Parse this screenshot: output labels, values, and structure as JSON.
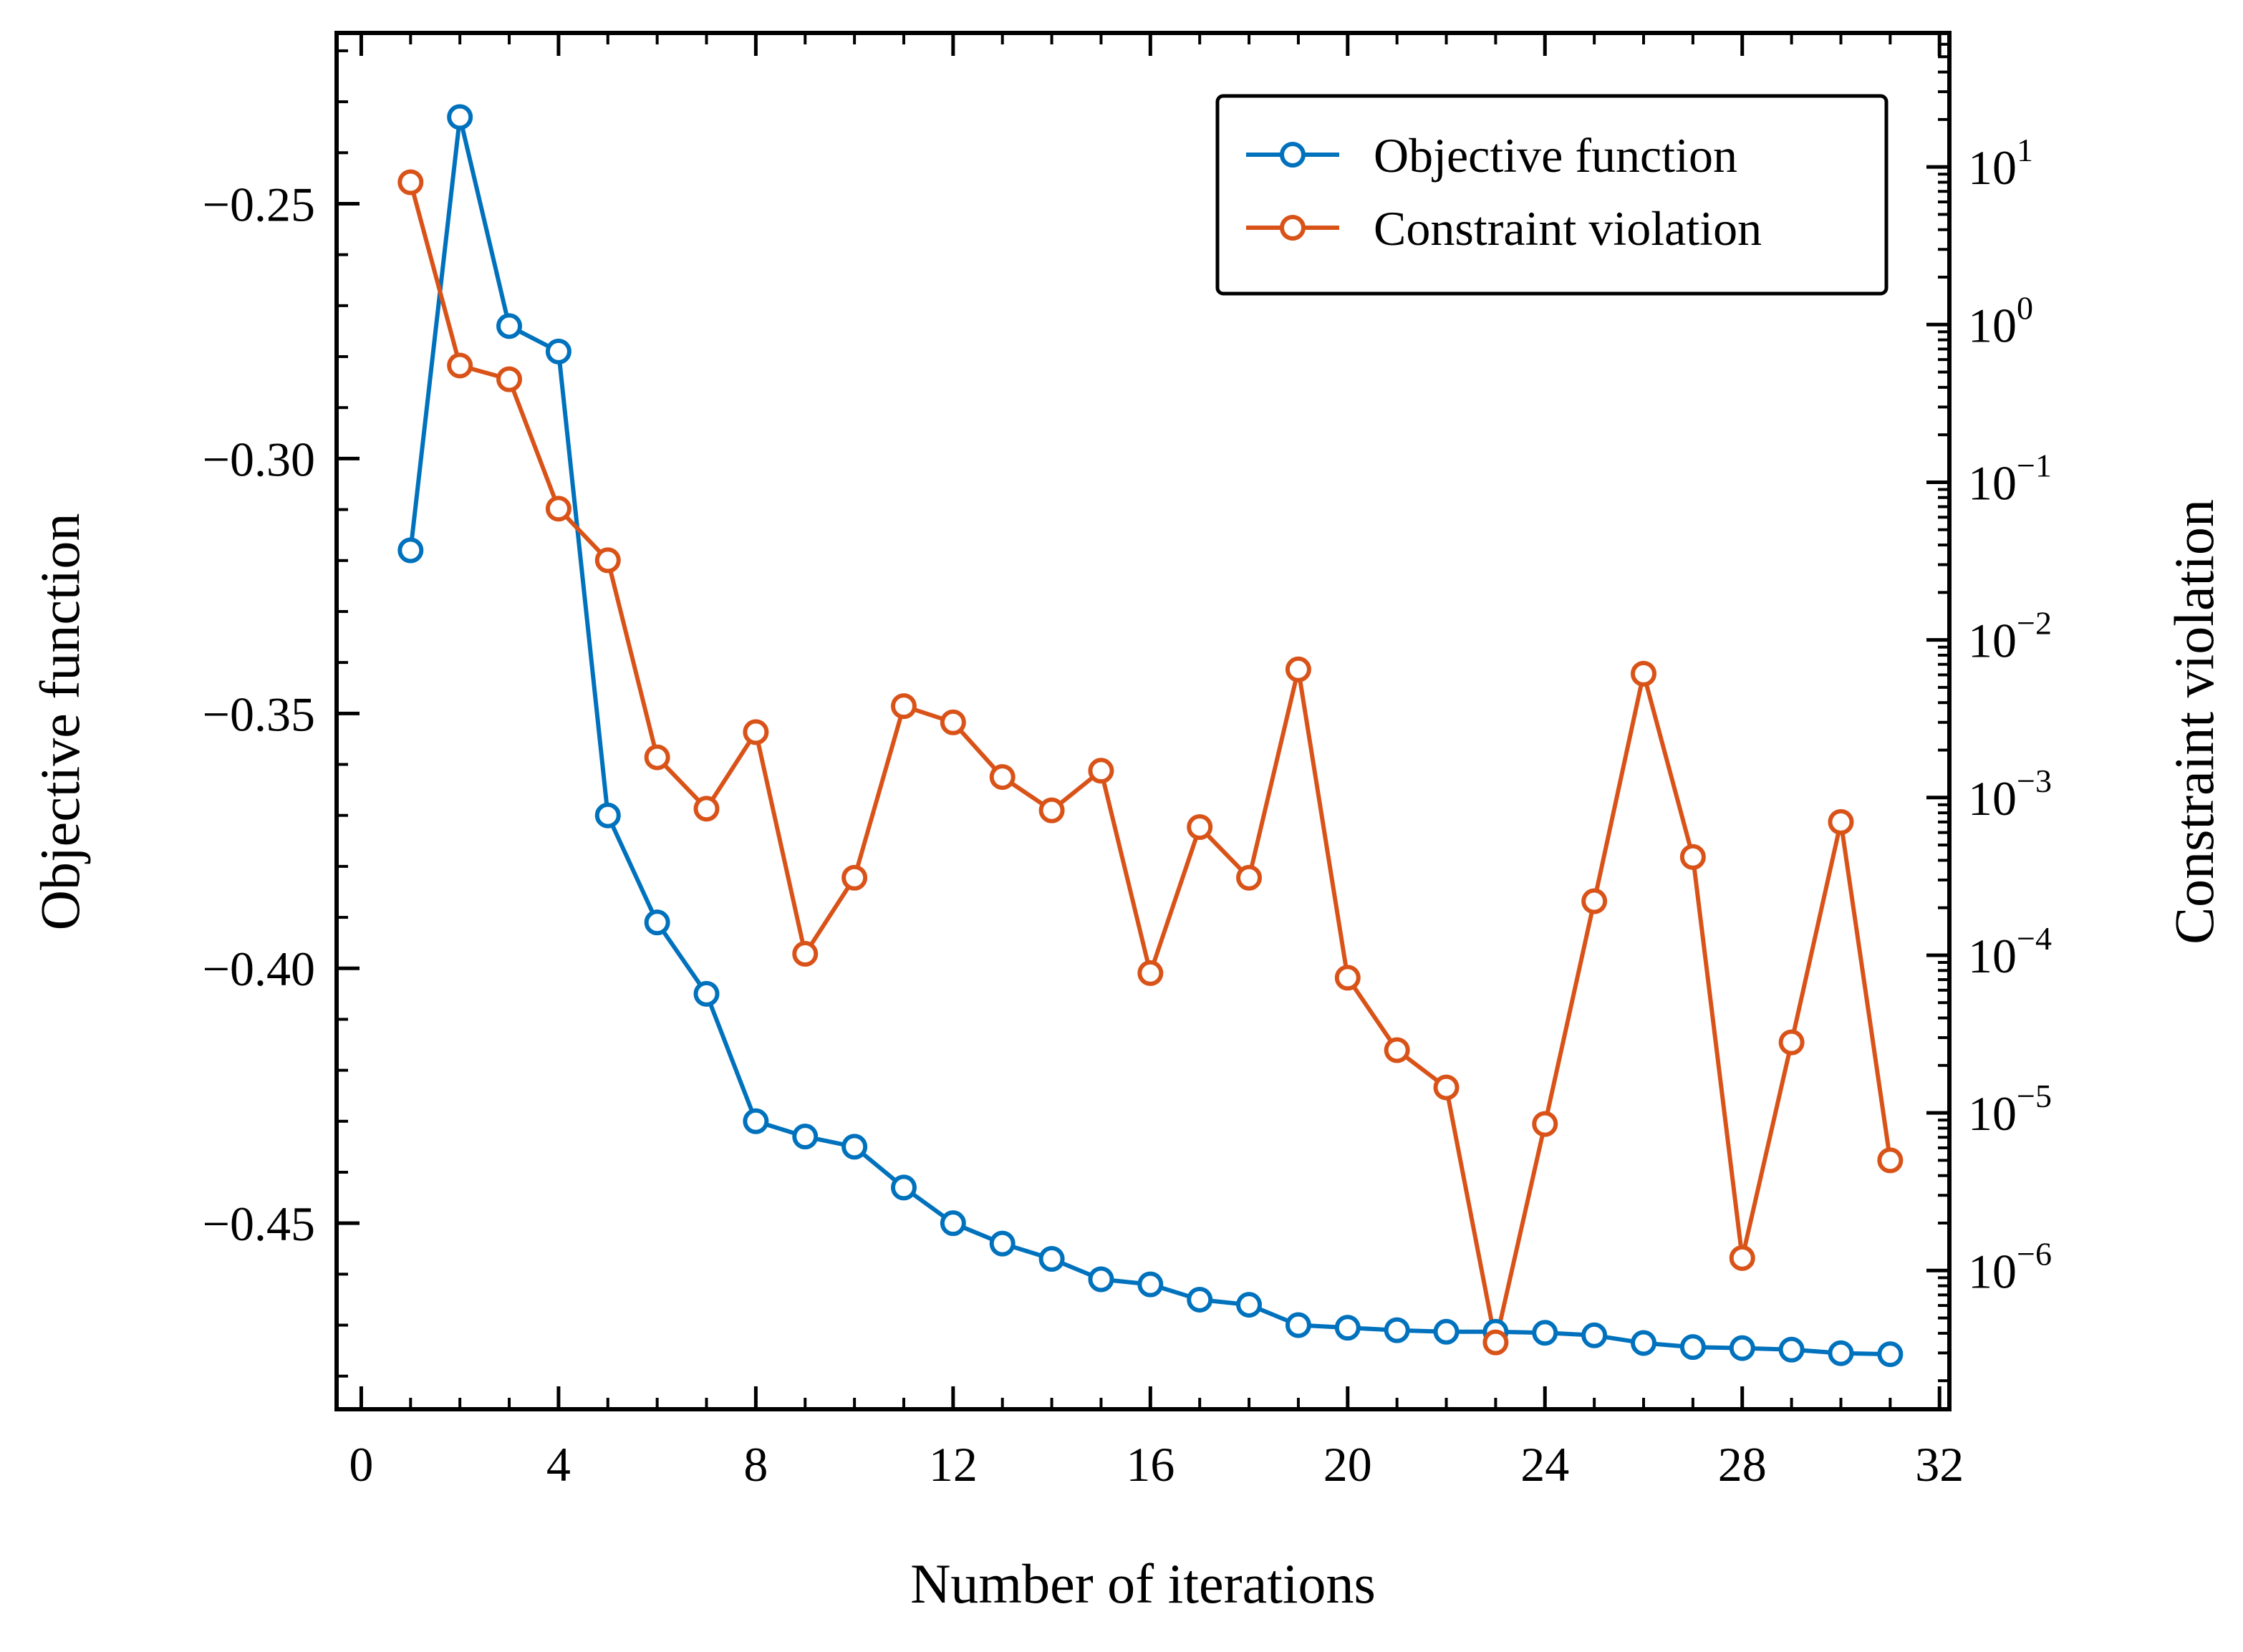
{
  "chart_data": {
    "type": "line",
    "xlabel": "Number of iterations",
    "ylabel_left": "Objective function",
    "ylabel_right": "Constraint violation",
    "xlim": [
      -0.5,
      32.2
    ],
    "xticks": [
      0,
      4,
      8,
      12,
      16,
      20,
      24,
      28,
      32
    ],
    "y_left_lim": [
      -0.4865,
      -0.2165
    ],
    "y_left_ticks": [
      -0.25,
      -0.3,
      -0.35,
      -0.4,
      -0.45
    ],
    "y_left_tick_labels": [
      "−0.25",
      "−0.30",
      "−0.35",
      "−0.40",
      "−0.45"
    ],
    "y_right_scale": "log",
    "y_right_log_lim": [
      -6.88,
      1.85
    ],
    "y_right_tick_exponents": [
      1,
      0,
      -1,
      -2,
      -3,
      -4,
      -5,
      -6
    ],
    "y_right_tick_base": "10",
    "legend_position": "top-right",
    "grid": false,
    "series": [
      {
        "name": "Objective function",
        "axis": "left",
        "color": "#0072BD",
        "x": [
          1,
          2,
          3,
          4,
          5,
          6,
          7,
          8,
          9,
          10,
          11,
          12,
          13,
          14,
          15,
          16,
          17,
          18,
          19,
          20,
          21,
          22,
          23,
          24,
          25,
          26,
          27,
          28,
          29,
          30,
          31
        ],
        "y": [
          -0.318,
          -0.233,
          -0.274,
          -0.279,
          -0.37,
          -0.391,
          -0.405,
          -0.43,
          -0.433,
          -0.435,
          -0.443,
          -0.45,
          -0.454,
          -0.457,
          -0.461,
          -0.462,
          -0.465,
          -0.466,
          -0.47,
          -0.4705,
          -0.471,
          -0.4713,
          -0.4713,
          -0.4715,
          -0.472,
          -0.4735,
          -0.4743,
          -0.4745,
          -0.4748,
          -0.4755,
          -0.4757
        ]
      },
      {
        "name": "Constraint violation",
        "axis": "right",
        "color": "#D95319",
        "x": [
          1,
          2,
          3,
          4,
          5,
          6,
          7,
          8,
          9,
          10,
          11,
          12,
          13,
          14,
          15,
          16,
          17,
          18,
          19,
          20,
          21,
          22,
          23,
          24,
          25,
          26,
          27,
          28,
          29,
          30,
          31
        ],
        "y": [
          8.0,
          0.55,
          0.45,
          0.068,
          0.032,
          0.0018,
          0.00085,
          0.0026,
          0.000102,
          0.00031,
          0.0038,
          0.003,
          0.00135,
          0.00083,
          0.00148,
          7.7e-05,
          0.00065,
          0.00031,
          0.0065,
          7.2e-05,
          2.5e-05,
          1.45e-05,
          3.5e-07,
          8.5e-06,
          0.00022,
          0.0061,
          0.00042,
          1.2e-06,
          2.8e-05,
          0.0007,
          5e-06
        ]
      }
    ]
  }
}
